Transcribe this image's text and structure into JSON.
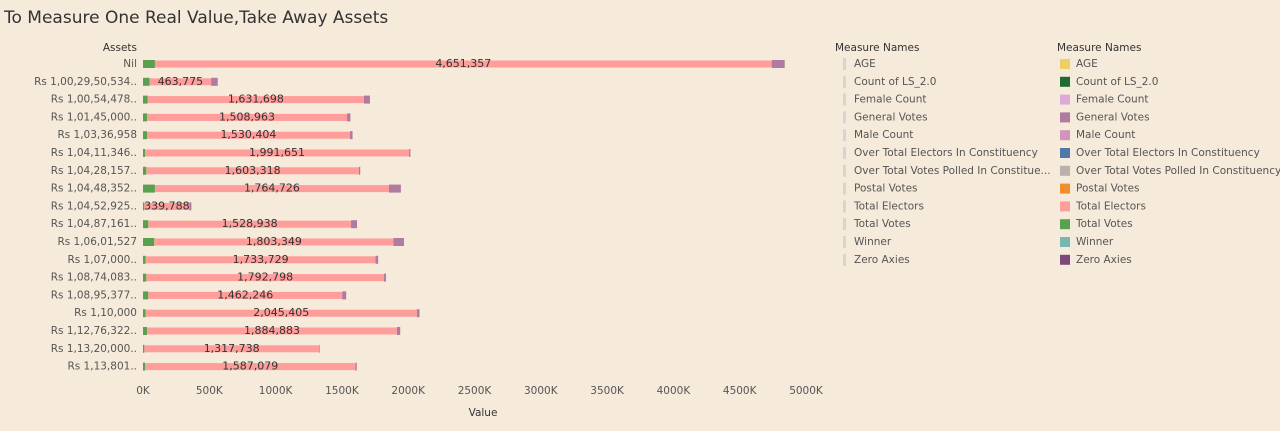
{
  "chart_data": {
    "type": "stacked_barh",
    "title": "To Measure One Real Value,Take Away Assets",
    "y_label": "Assets",
    "x_label": "Value",
    "categories": [
      "Nil",
      "Rs 1,00,29,50,534..",
      "Rs 1,00,54,478..",
      "Rs 1,01,45,000..",
      "Rs 1,03,36,958",
      "Rs 1,04,11,346..",
      "Rs 1,04,28,157..",
      "Rs 1,04,48,352..",
      "Rs 1,04,52,925..",
      "Rs 1,04,87,161..",
      "Rs 1,06,01,527",
      "Rs 1,07,000..",
      "Rs 1,08,74,083..",
      "Rs 1,08,95,377..",
      "Rs 1,10,000",
      "Rs 1,12,76,322..",
      "Rs 1,13,20,000..",
      "Rs 1,13,801.."
    ],
    "series": [
      {
        "name": "Total Votes",
        "color": "#59a14f",
        "values": [
          90000,
          50000,
          35000,
          30000,
          30000,
          15000,
          25000,
          90000,
          10000,
          40000,
          85000,
          20000,
          25000,
          40000,
          20000,
          30000,
          10000,
          15000
        ]
      },
      {
        "name": "Total Electors",
        "color": "#ff9d9a",
        "values": [
          4651357,
          463775,
          1631698,
          1508963,
          1530404,
          1991651,
          1603318,
          1764726,
          339788,
          1528938,
          1803349,
          1733729,
          1792798,
          1462246,
          2045405,
          1884883,
          1317738,
          1587079
        ],
        "value_labels": [
          "4,651,357",
          "463,775",
          "1,631,698",
          "1,508,963",
          "1,530,404",
          "1,991,651",
          "1,603,318",
          "1,764,726",
          "339,788",
          "1,528,938",
          "1,803,349",
          "1,733,729",
          "1,792,798",
          "1,462,246",
          "2,045,405",
          "1,884,883",
          "1,317,738",
          "1,587,079"
        ]
      },
      {
        "name": "General Votes",
        "color": "#b07aa1",
        "values": [
          98000,
          50000,
          45000,
          25000,
          20000,
          10000,
          10000,
          90000,
          15000,
          45000,
          80000,
          20000,
          15000,
          30000,
          20000,
          25000,
          5000,
          10000
        ]
      }
    ],
    "xlim": [
      0,
      5000000
    ],
    "xticks": [
      {
        "value": 0,
        "label": "0K"
      },
      {
        "value": 500000,
        "label": "500K"
      },
      {
        "value": 1000000,
        "label": "1000K"
      },
      {
        "value": 1500000,
        "label": "1500K"
      },
      {
        "value": 2000000,
        "label": "2000K"
      },
      {
        "value": 2500000,
        "label": "2500K"
      },
      {
        "value": 3000000,
        "label": "3000K"
      },
      {
        "value": 3500000,
        "label": "3500K"
      },
      {
        "value": 4000000,
        "label": "4000K"
      },
      {
        "value": 4500000,
        "label": "4500K"
      },
      {
        "value": 5000000,
        "label": "5000K"
      }
    ],
    "legend": {
      "title": "Measure Names",
      "items": [
        {
          "name": "AGE",
          "color": "#f1ce63"
        },
        {
          "name": "Count of LS_2.0",
          "color": "#1e6b34"
        },
        {
          "name": "Female Count",
          "color": "#dcaad6"
        },
        {
          "name": "General Votes",
          "color": "#b07aa1"
        },
        {
          "name": "Male Count",
          "color": "#cf95bd"
        },
        {
          "name": "Over Total Electors  In Constituency",
          "color": "#4e79a7"
        },
        {
          "name": "Over Total Votes Polled  In Constituency",
          "color": "#bab0ac"
        },
        {
          "name": "Postal Votes",
          "color": "#f28e2b"
        },
        {
          "name": "Total Electors",
          "color": "#ff9d9a"
        },
        {
          "name": "Total Votes",
          "color": "#59a14f"
        },
        {
          "name": "Winner",
          "color": "#76b7b2"
        },
        {
          "name": "Zero Axies",
          "color": "#7b4a7a"
        }
      ]
    },
    "faded_legend_items": [
      "AGE",
      "Count of LS_2.0",
      "Female Count",
      "General Votes",
      "Male Count",
      "Over Total Electors  In Constituency",
      "Over Total Votes Polled  In Constitue...",
      "Postal Votes",
      "Total Electors",
      "Total Votes",
      "Winner",
      "Zero Axies"
    ]
  }
}
